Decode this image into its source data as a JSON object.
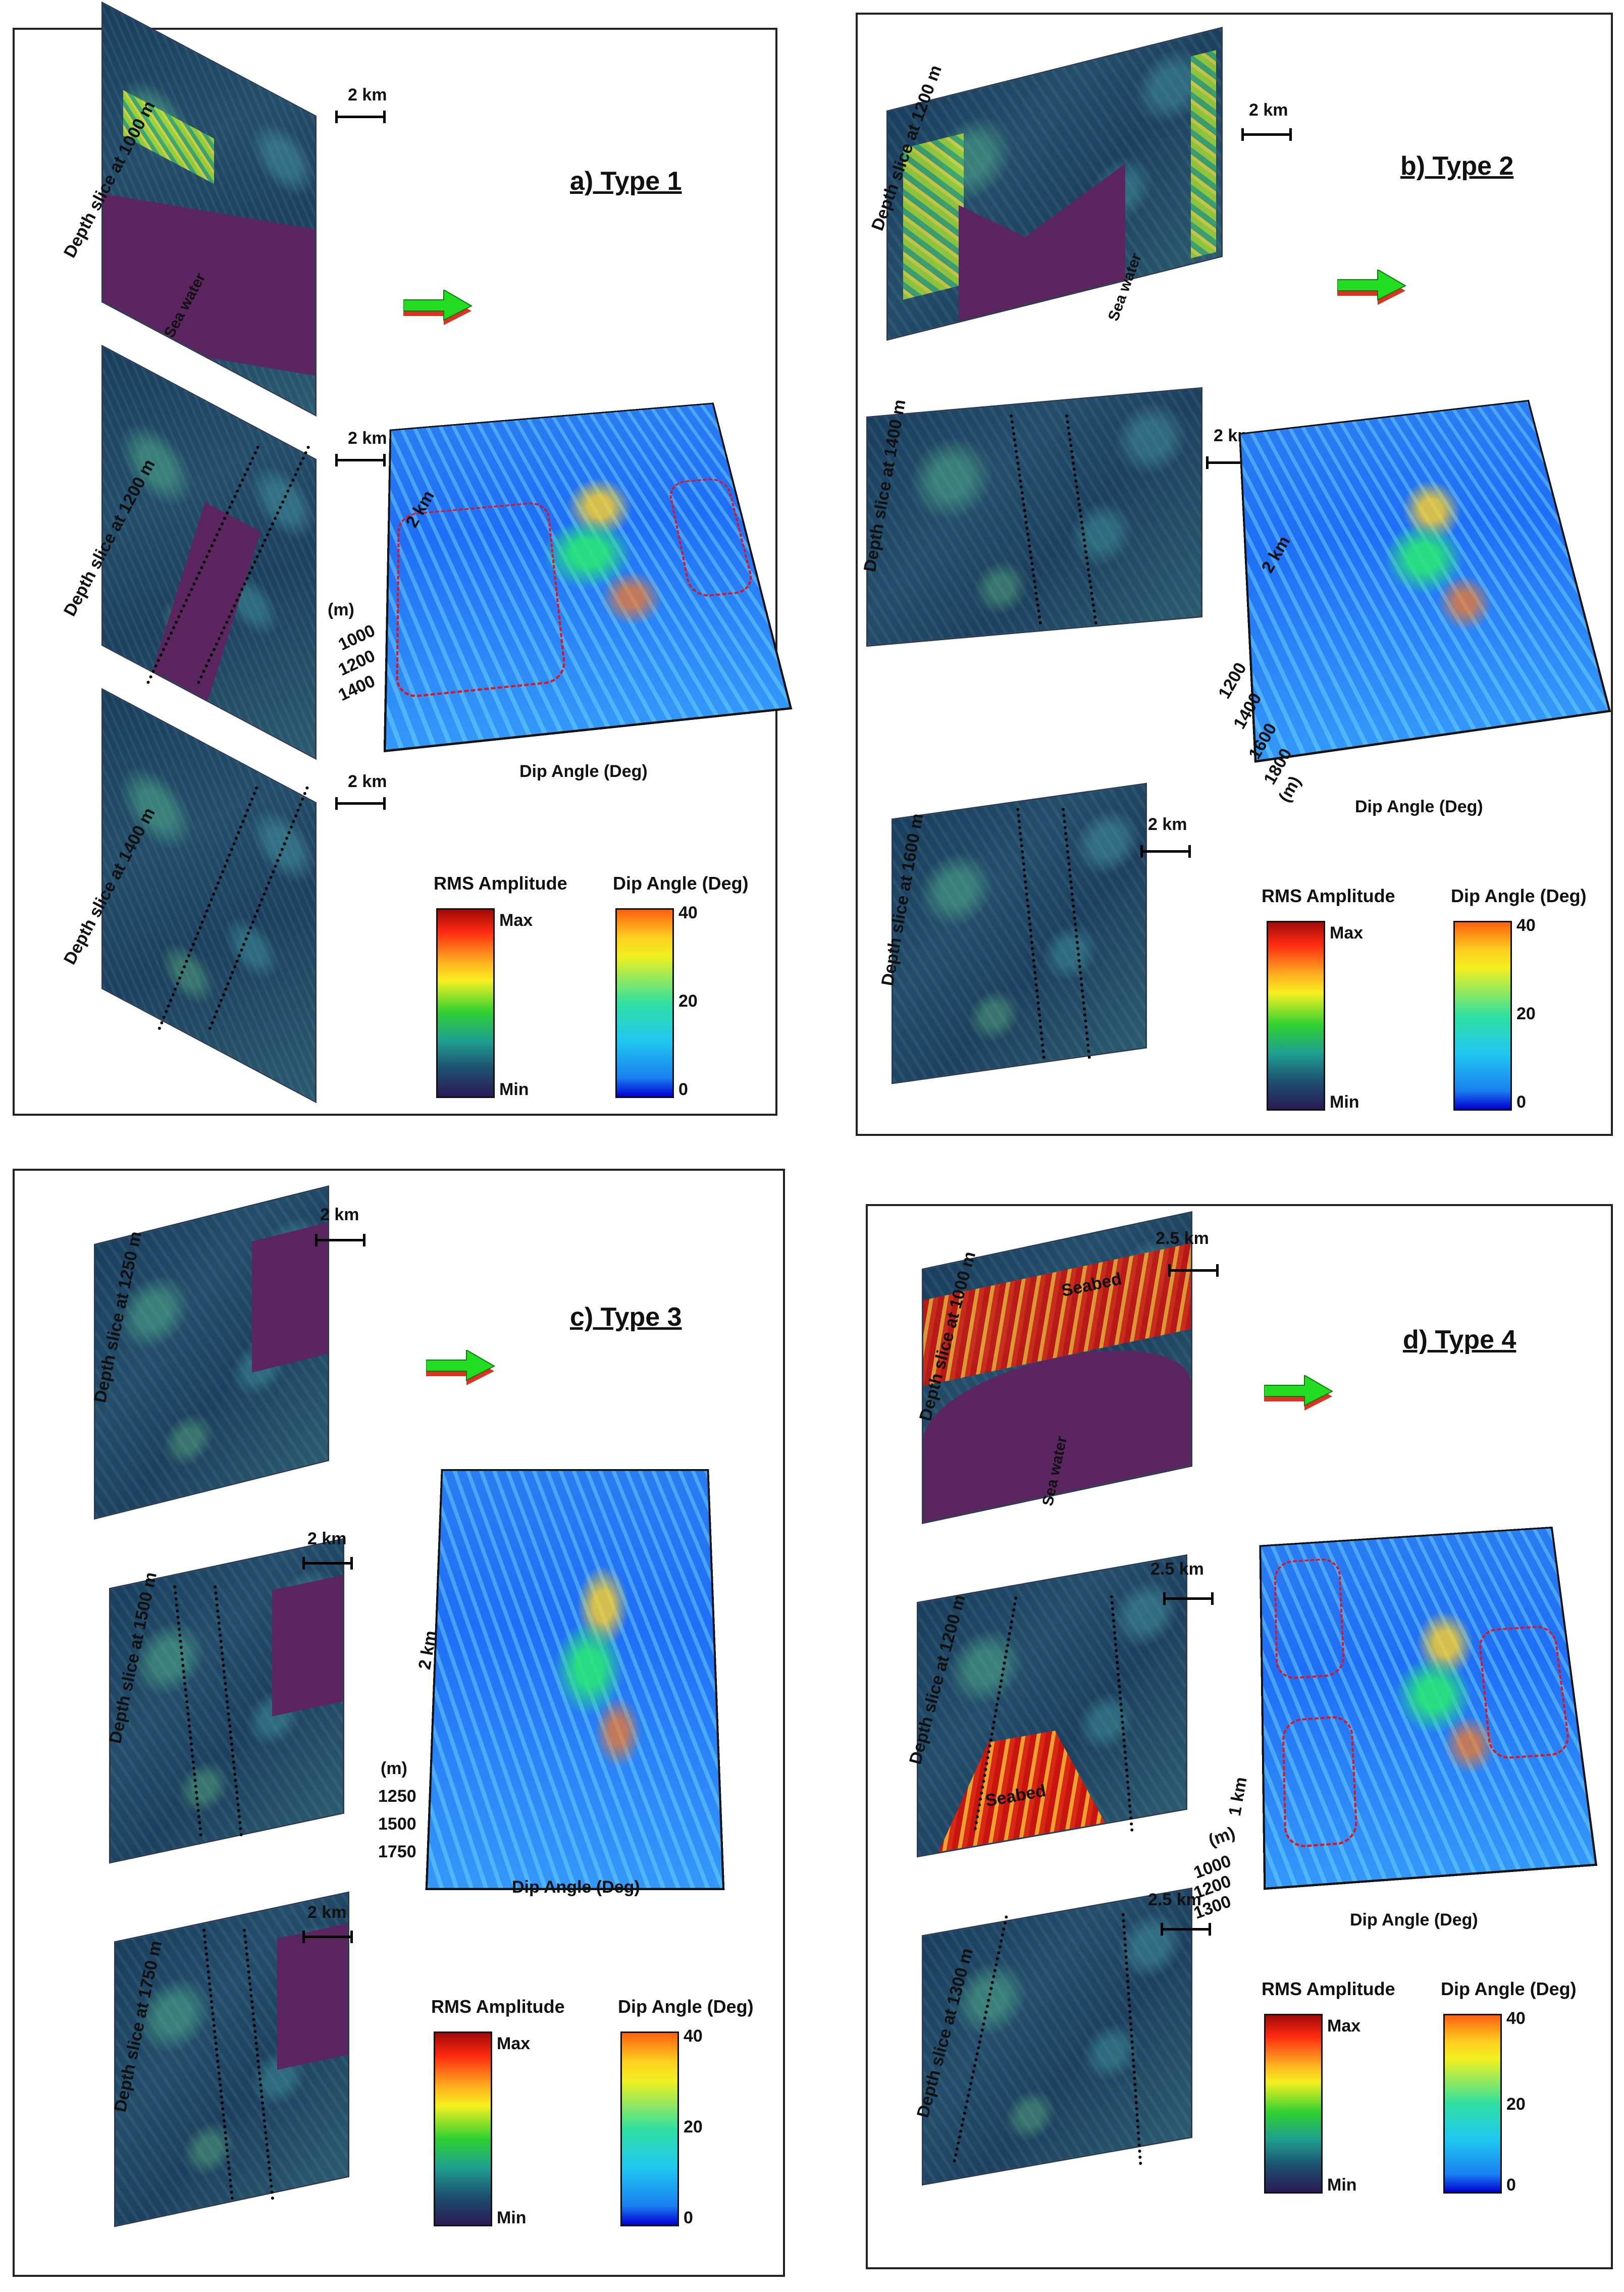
{
  "panels": {
    "a": {
      "title": "a) Type 1",
      "slices": [
        "Depth slice at 1000 m",
        "Depth slice at 1200 m",
        "Depth slice at 1400 m"
      ],
      "scale": "2 km",
      "water_label": "Sea water",
      "cube_scale": "2 km",
      "depth_unit": "(m)",
      "depth_ticks": [
        "1000",
        "1200",
        "1400"
      ],
      "axis_label": "Dip Angle (Deg)"
    },
    "b": {
      "title": "b) Type 2",
      "slices": [
        "Depth slice at 1200 m",
        "Depth slice at 1400 m",
        "Depth slice at 1600 m"
      ],
      "scale": "2 km",
      "water_label": "Sea water",
      "cube_scale": "2 km",
      "depth_unit": "(m)",
      "depth_ticks": [
        "1200",
        "1400",
        "1600",
        "1800"
      ],
      "axis_label": "Dip Angle (Deg)"
    },
    "c": {
      "title": "c) Type 3",
      "slices": [
        "Depth slice at 1250 m",
        "Depth slice at 1500 m",
        "Depth slice at 1750 m"
      ],
      "scale": "2 km",
      "cube_scale": "2 km",
      "depth_unit": "(m)",
      "depth_ticks": [
        "1250",
        "1500",
        "1750"
      ],
      "axis_label": "Dip Angle (Deg)"
    },
    "d": {
      "title": "d) Type 4",
      "slices": [
        "Depth slice at 1000 m",
        "Depth slice at 1200 m",
        "Depth slice at 1300 m"
      ],
      "scale": "2.5 km",
      "water_label": "Sea water",
      "seabed_label": "Seabed",
      "cube_scale": "1 km",
      "depth_unit": "(m)",
      "depth_ticks": [
        "1000",
        "1200",
        "1300"
      ],
      "axis_label": "Dip Angle (Deg)"
    }
  },
  "legend": {
    "rms_title": "RMS Amplitude",
    "rms_max": "Max",
    "rms_min": "Min",
    "dip_title": "Dip Angle (Deg)",
    "dip_ticks": [
      "40",
      "20",
      "0"
    ]
  },
  "colors": {
    "sea_water": "#5b2660",
    "dashed_outline": "#e3121b",
    "arrow_green": "#22dd22",
    "arrow_red": "#dd3322"
  }
}
